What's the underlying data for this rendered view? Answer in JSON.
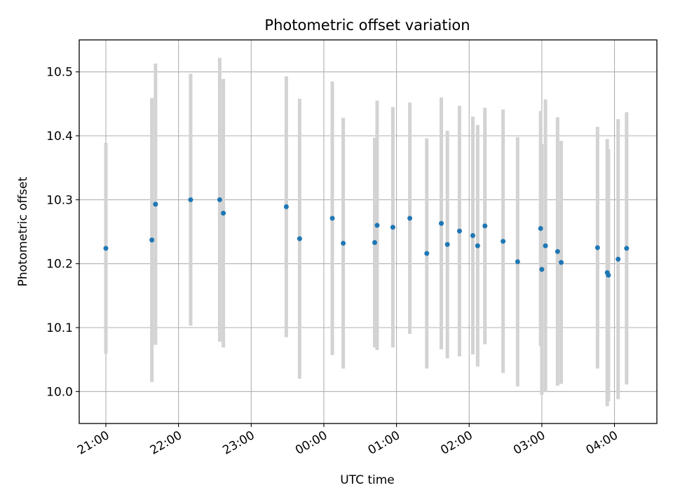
{
  "chart_data": {
    "type": "scatter",
    "title": "Photometric offset variation",
    "xlabel": "UTC time",
    "ylabel": "Photometric offset",
    "x_axis_kind": "time",
    "xlim": [
      "2023-01-01T20:38:00",
      "2023-01-02T04:35:00"
    ],
    "ylim": [
      9.95,
      10.55
    ],
    "x_ticks": [
      {
        "t": "2023-01-01T21:00:00",
        "label": "21:00"
      },
      {
        "t": "2023-01-01T22:00:00",
        "label": "22:00"
      },
      {
        "t": "2023-01-01T23:00:00",
        "label": "23:00"
      },
      {
        "t": "2023-01-02T00:00:00",
        "label": "00:00"
      },
      {
        "t": "2023-01-02T01:00:00",
        "label": "01:00"
      },
      {
        "t": "2023-01-02T02:00:00",
        "label": "02:00"
      },
      {
        "t": "2023-01-02T03:00:00",
        "label": "03:00"
      },
      {
        "t": "2023-01-02T04:00:00",
        "label": "04:00"
      }
    ],
    "y_ticks": [
      {
        "v": 10.0,
        "label": "10.0"
      },
      {
        "v": 10.1,
        "label": "10.1"
      },
      {
        "v": 10.2,
        "label": "10.2"
      },
      {
        "v": 10.3,
        "label": "10.3"
      },
      {
        "v": 10.4,
        "label": "10.4"
      },
      {
        "v": 10.5,
        "label": "10.5"
      }
    ],
    "grid": true,
    "marker_color": "#1f77b4",
    "errorbar_color": "#d3d3d3",
    "points": [
      {
        "t": "2023-01-01T21:00:00",
        "y": 10.224,
        "err": 0.165
      },
      {
        "t": "2023-01-01T21:38:00",
        "y": 10.237,
        "err": 0.222
      },
      {
        "t": "2023-01-01T21:41:00",
        "y": 10.293,
        "err": 0.22
      },
      {
        "t": "2023-01-01T22:10:00",
        "y": 10.3,
        "err": 0.197
      },
      {
        "t": "2023-01-01T22:34:00",
        "y": 10.3,
        "err": 0.222
      },
      {
        "t": "2023-01-01T22:37:00",
        "y": 10.279,
        "err": 0.21
      },
      {
        "t": "2023-01-01T23:29:00",
        "y": 10.289,
        "err": 0.204
      },
      {
        "t": "2023-01-01T23:40:00",
        "y": 10.239,
        "err": 0.219
      },
      {
        "t": "2023-01-02T00:07:00",
        "y": 10.271,
        "err": 0.214
      },
      {
        "t": "2023-01-02T00:16:00",
        "y": 10.232,
        "err": 0.196
      },
      {
        "t": "2023-01-02T00:42:00",
        "y": 10.233,
        "err": 0.164
      },
      {
        "t": "2023-01-02T00:44:00",
        "y": 10.26,
        "err": 0.195
      },
      {
        "t": "2023-01-02T00:57:00",
        "y": 10.257,
        "err": 0.188
      },
      {
        "t": "2023-01-02T01:11:00",
        "y": 10.271,
        "err": 0.181
      },
      {
        "t": "2023-01-02T01:25:00",
        "y": 10.216,
        "err": 0.18
      },
      {
        "t": "2023-01-02T01:37:00",
        "y": 10.263,
        "err": 0.197
      },
      {
        "t": "2023-01-02T01:42:00",
        "y": 10.23,
        "err": 0.178
      },
      {
        "t": "2023-01-02T01:52:00",
        "y": 10.251,
        "err": 0.196
      },
      {
        "t": "2023-01-02T02:03:00",
        "y": 10.244,
        "err": 0.186
      },
      {
        "t": "2023-01-02T02:07:00",
        "y": 10.228,
        "err": 0.189
      },
      {
        "t": "2023-01-02T02:13:00",
        "y": 10.259,
        "err": 0.185
      },
      {
        "t": "2023-01-02T02:28:00",
        "y": 10.235,
        "err": 0.206
      },
      {
        "t": "2023-01-02T02:40:00",
        "y": 10.203,
        "err": 0.195
      },
      {
        "t": "2023-01-02T02:59:00",
        "y": 10.255,
        "err": 0.184
      },
      {
        "t": "2023-01-02T03:00:00",
        "y": 10.191,
        "err": 0.196
      },
      {
        "t": "2023-01-02T03:03:00",
        "y": 10.228,
        "err": 0.229
      },
      {
        "t": "2023-01-02T03:13:00",
        "y": 10.219,
        "err": 0.21
      },
      {
        "t": "2023-01-02T03:16:00",
        "y": 10.202,
        "err": 0.19
      },
      {
        "t": "2023-01-02T03:46:00",
        "y": 10.225,
        "err": 0.189
      },
      {
        "t": "2023-01-02T03:54:00",
        "y": 10.186,
        "err": 0.209
      },
      {
        "t": "2023-01-02T03:55:00",
        "y": 10.182,
        "err": 0.197
      },
      {
        "t": "2023-01-02T04:03:00",
        "y": 10.207,
        "err": 0.219
      },
      {
        "t": "2023-01-02T04:10:00",
        "y": 10.224,
        "err": 0.213
      }
    ]
  }
}
